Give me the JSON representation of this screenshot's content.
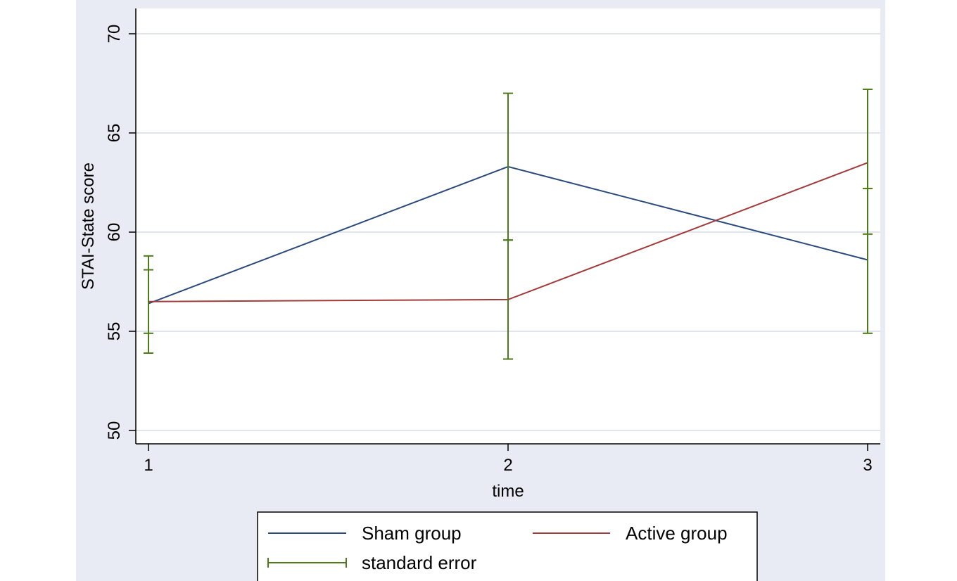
{
  "chart_data": {
    "type": "line",
    "title": "",
    "xlabel": "time",
    "ylabel": "STAI-State score",
    "x": [
      1,
      2,
      3
    ],
    "x_tick_labels": [
      "1",
      "2",
      "3"
    ],
    "y_ticks": [
      50,
      55,
      60,
      65,
      70
    ],
    "y_tick_labels": [
      "50",
      "55",
      "60",
      "65",
      "70"
    ],
    "xlim": [
      1,
      3
    ],
    "ylim": [
      50,
      70
    ],
    "grid": "horizontal",
    "legend_position": "bottom",
    "series": [
      {
        "name": "Sham group",
        "color": "#2b4a7c",
        "values": [
          56.4,
          63.3,
          58.6
        ],
        "se_low": [
          54.9,
          59.6,
          54.9
        ],
        "se_high": [
          58.1,
          67.0,
          62.2
        ]
      },
      {
        "name": "Active group",
        "color": "#a23a3a",
        "values": [
          56.5,
          56.6,
          63.5
        ],
        "se_low": [
          53.9,
          53.6,
          59.9
        ],
        "se_high": [
          58.8,
          59.6,
          67.2
        ]
      }
    ],
    "error_bars": {
      "name": "standard error",
      "color": "#4d7a1a"
    },
    "colors": {
      "outer_background": "#e8ebf4",
      "plot_background": "#ffffff",
      "grid": "#d6dbe8"
    }
  }
}
